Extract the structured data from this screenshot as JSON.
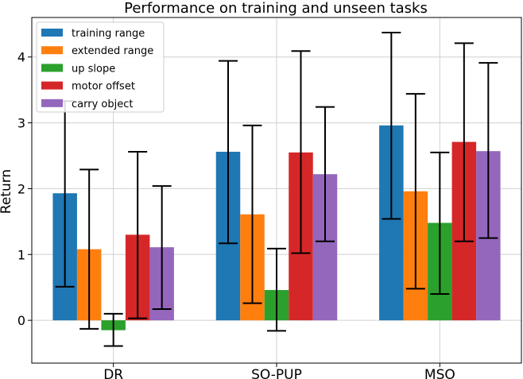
{
  "chart_data": {
    "type": "bar",
    "title": "Performance on training and unseen tasks",
    "xlabel": "",
    "ylabel": "Return",
    "ylim": [
      -0.65,
      4.6
    ],
    "yticks": [
      0,
      1,
      2,
      3,
      4
    ],
    "categories": [
      "DR",
      "SO-PUP",
      "MSO"
    ],
    "grid": true,
    "legend": "top-left",
    "series": [
      {
        "name": "training range",
        "color": "#1f77b4",
        "values": [
          1.93,
          2.56,
          2.96
        ],
        "err_low": [
          0.51,
          1.17,
          1.54
        ],
        "err_high": [
          3.33,
          3.94,
          4.37
        ]
      },
      {
        "name": "extended range",
        "color": "#ff7f0e",
        "values": [
          1.08,
          1.61,
          1.96
        ],
        "err_low": [
          -0.13,
          0.26,
          0.48
        ],
        "err_high": [
          2.29,
          2.96,
          3.44
        ]
      },
      {
        "name": "up slope",
        "color": "#2ca02c",
        "values": [
          -0.15,
          0.46,
          1.48
        ],
        "err_low": [
          -0.39,
          -0.16,
          0.4
        ],
        "err_high": [
          0.1,
          1.09,
          2.55
        ]
      },
      {
        "name": "motor offset",
        "color": "#d62728",
        "values": [
          1.3,
          2.55,
          2.71
        ],
        "err_low": [
          0.03,
          1.02,
          1.2
        ],
        "err_high": [
          2.56,
          4.09,
          4.21
        ]
      },
      {
        "name": "carry object",
        "color": "#9467bd",
        "values": [
          1.11,
          2.22,
          2.57
        ],
        "err_low": [
          0.17,
          1.2,
          1.25
        ],
        "err_high": [
          2.04,
          3.24,
          3.91
        ]
      }
    ]
  }
}
